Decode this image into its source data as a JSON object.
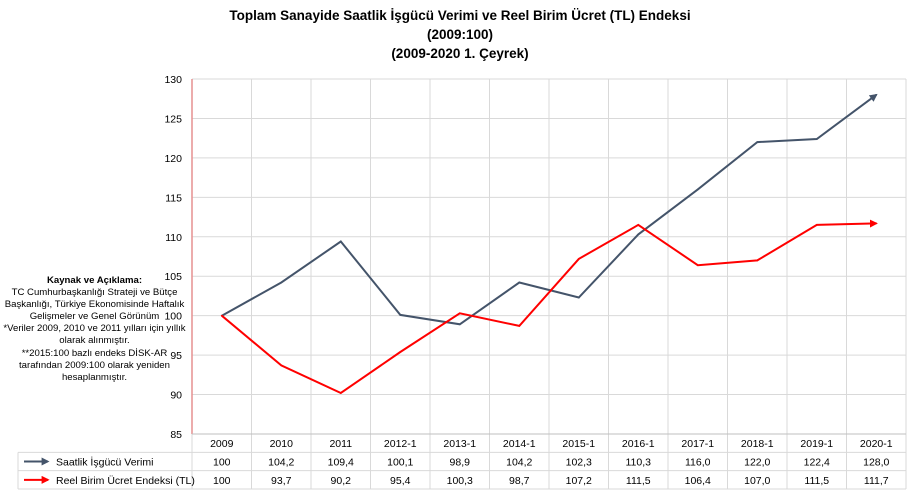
{
  "title": {
    "line1": "Toplam Sanayide Saatlik İşgücü Verimi ve Reel Birim Ücret (TL) Endeksi",
    "line2": "(2009:100)",
    "line3": "(2009-2020 1. Çeyrek)"
  },
  "note": {
    "header": "Kaynak ve Açıklama:",
    "line1": "TC Cumhurbaşkanlığı Strateji ve Bütçe Başkanlığı, Türkiye Ekonomisinde Haftalık Gelişmeler ve Genel Görünüm",
    "line2": "*Veriler 2009, 2010 ve 2011 yılları için yıllık olarak alınmıştır.",
    "line3": "**2015:100 bazlı endeks DİSK-AR tarafından 2009:100 olarak yeniden hesaplanmıştır."
  },
  "chart_data": {
    "type": "line",
    "categories": [
      "2009",
      "2010",
      "2011",
      "2012-1",
      "2013-1",
      "2014-1",
      "2015-1",
      "2016-1",
      "2017-1",
      "2018-1",
      "2019-1",
      "2020-1"
    ],
    "ylim": [
      85,
      130
    ],
    "yticks": [
      "85",
      "90",
      "95",
      "100",
      "105",
      "110",
      "115",
      "120",
      "125",
      "130"
    ],
    "grid": true,
    "data_table": true,
    "series": [
      {
        "name": "Saatlik İşgücü Verimi",
        "color": "#44546a",
        "values": [
          100,
          104.2,
          109.4,
          100.1,
          98.9,
          104.2,
          102.3,
          110.3,
          116.0,
          122.0,
          122.4,
          128.0
        ],
        "labels": [
          "100",
          "104,2",
          "109,4",
          "100,1",
          "98,9",
          "104,2",
          "102,3",
          "110,3",
          "116,0",
          "122,0",
          "122,4",
          "128,0"
        ]
      },
      {
        "name": "Reel Birim Ücret Endeksi (TL)",
        "color": "#ff0000",
        "values": [
          100,
          93.7,
          90.2,
          95.4,
          100.3,
          98.7,
          107.2,
          111.5,
          106.4,
          107.0,
          111.5,
          111.7
        ],
        "labels": [
          "100",
          "93,7",
          "90,2",
          "95,4",
          "100,3",
          "98,7",
          "107,2",
          "111,5",
          "106,4",
          "107,0",
          "111,5",
          "111,7"
        ]
      }
    ]
  }
}
